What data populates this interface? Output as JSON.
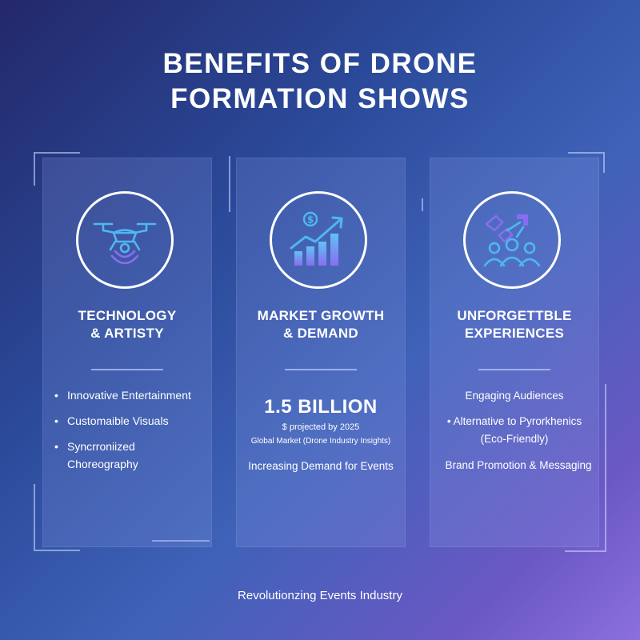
{
  "title": {
    "line1": "BENEFITS OF DRONE",
    "line2": "FORMATION SHOWS"
  },
  "panels": [
    {
      "icon": "drone-icon",
      "heading": {
        "line1": "TECHNOLOGY",
        "line2": "& ARTISTY"
      },
      "bullets": [
        "Innovative Entertainment",
        "Customaible Visuals",
        "Syncrroniized Choreography"
      ]
    },
    {
      "icon": "growth-chart-icon",
      "heading": {
        "line1": "MARKET GROWTH",
        "line2": "& DEMAND"
      },
      "stat": "1.5 BILLION",
      "stat_sub": "$ projected by 2025",
      "stat_source": "Global Market (Drone Industry Insights)",
      "stat_line": "Increasing Demand for Events"
    },
    {
      "icon": "audience-icon",
      "heading": {
        "line1": "UNFORGETTBLE",
        "line2": "EXPERIENCES"
      },
      "item1": "Engaging Audiences",
      "item2_a": "Alternative to Pyrorkhenics",
      "item2_b": "(Eco-Friendly)",
      "item3": "Brand Promotion & Messaging"
    }
  ],
  "footer": "Revolutionzing Events Industry",
  "colors": {
    "icon_accent_blue": "#4fb8f0",
    "icon_accent_purple": "#8a6cf0",
    "ring": "#ffffff"
  }
}
